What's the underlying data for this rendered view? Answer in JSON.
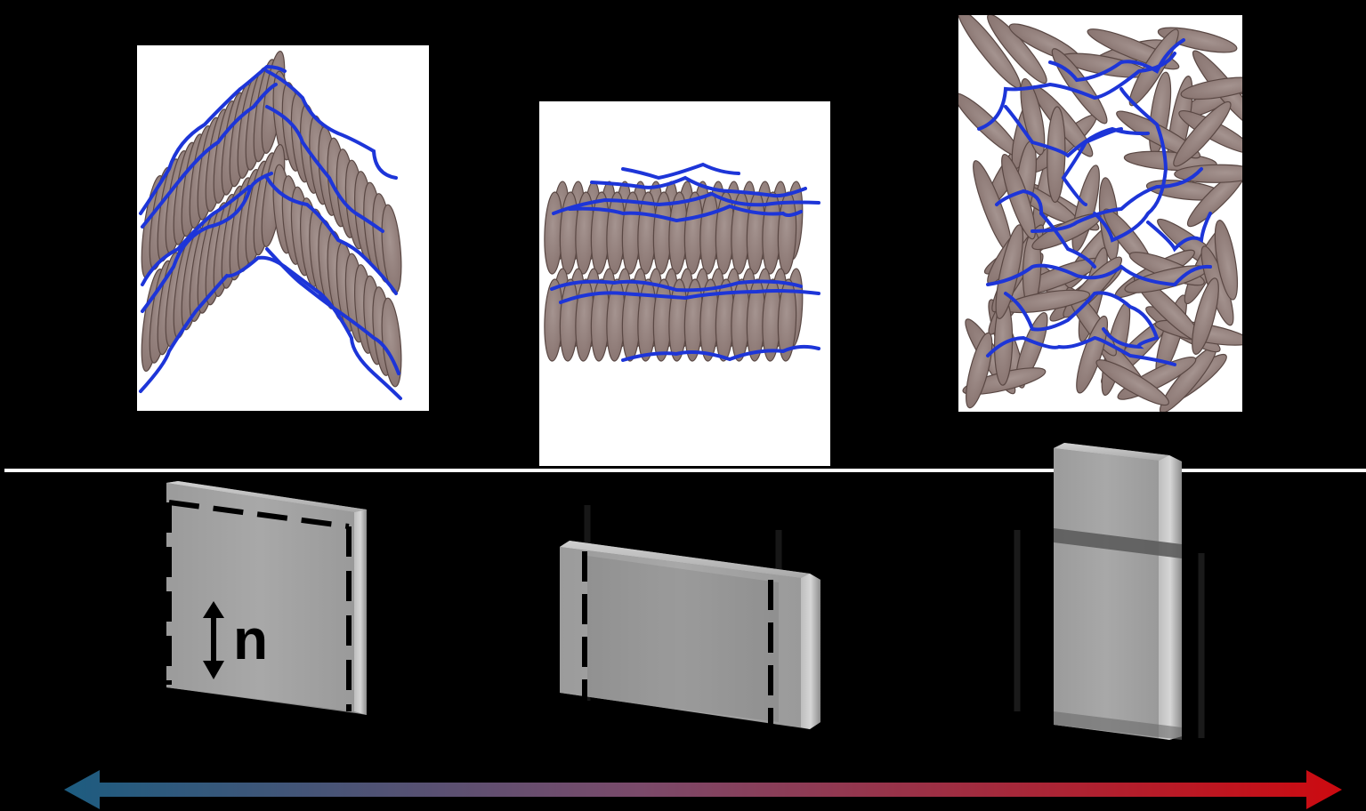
{
  "colors": {
    "background": "#000000",
    "panel": "#ffffff",
    "mesogen_fill": "#8a7672",
    "mesogen_edge": "#5a4844",
    "polymer_chain": "#1d35d8",
    "film_face": "#a3a3a3",
    "film_edge": "#c9c9c9",
    "arrow_cool": "#1d5c80",
    "arrow_hot": "#cc0a10"
  },
  "diagram": {
    "panels": [
      {
        "name": "chevron-smectic",
        "icon": "chevron-layers-icon"
      },
      {
        "name": "layered-smectic",
        "icon": "stacked-layers-icon"
      },
      {
        "name": "isotropic",
        "icon": "random-mesogens-icon"
      }
    ],
    "films": [
      {
        "name": "square-film",
        "icon": "square-film-icon"
      },
      {
        "name": "wide-film",
        "icon": "wide-film-icon"
      },
      {
        "name": "tall-film",
        "icon": "tall-film-icon"
      }
    ],
    "director_label": "n",
    "scale_arrow": {
      "icon": "double-arrow-icon"
    }
  }
}
